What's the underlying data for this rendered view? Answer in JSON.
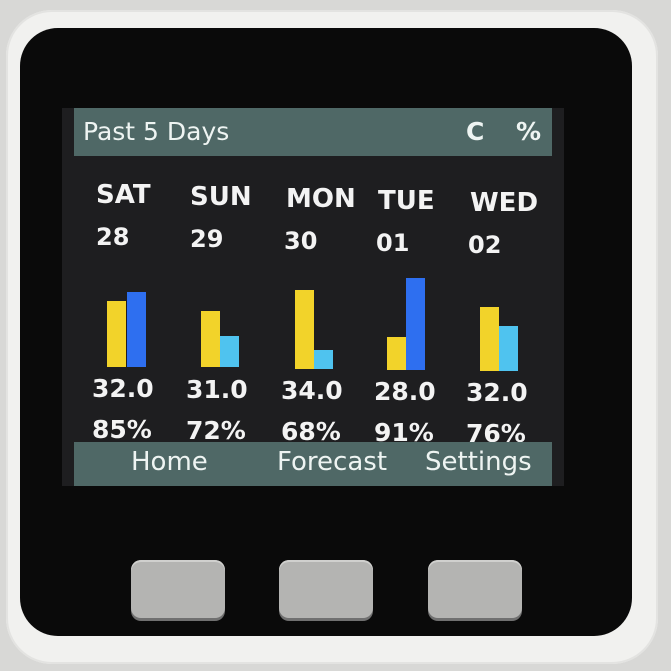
{
  "header": {
    "title": "Past 5 Days",
    "unit_temp": "C",
    "unit_humidity": "%"
  },
  "days": [
    {
      "day": "SAT",
      "date": "28",
      "temp": "32.0",
      "humidity": "85%"
    },
    {
      "day": "SUN",
      "date": "29",
      "temp": "31.0",
      "humidity": "72%"
    },
    {
      "day": "MON",
      "date": "30",
      "temp": "34.0",
      "humidity": "68%"
    },
    {
      "day": "TUE",
      "date": "01",
      "temp": "28.0",
      "humidity": "91%"
    },
    {
      "day": "WED",
      "date": "02",
      "temp": "32.0",
      "humidity": "76%"
    }
  ],
  "footer": {
    "home": "Home",
    "forecast": "Forecast",
    "settings": "Settings"
  },
  "colors": {
    "temp_bar": "#f2d32a",
    "humidity_bar_high": "#2e6ff0",
    "humidity_bar_low": "#4fc3ef"
  }
}
